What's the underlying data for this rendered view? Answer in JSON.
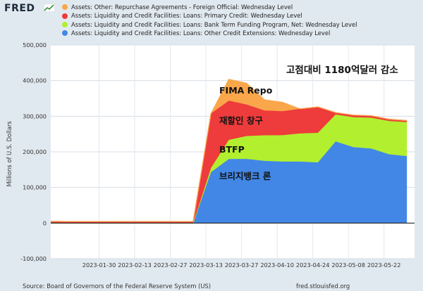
{
  "header": {
    "logo_text": "FRED",
    "logo_icon": "fred-chart-icon"
  },
  "chart_data": {
    "type": "area",
    "stacked": true,
    "xlabel": "",
    "ylabel": "Millions of U.S. Dollars",
    "ylim": [
      -100000,
      500000
    ],
    "yticks": [
      -100000,
      0,
      100000,
      200000,
      300000,
      400000,
      500000
    ],
    "ytick_labels": [
      "-100,000",
      "0",
      "100,000",
      "200,000",
      "300,000",
      "400,000",
      "500,000"
    ],
    "xlim": [
      "2023-01-11",
      "2023-06-03"
    ],
    "xticks": [
      "2023-01-30",
      "2023-02-13",
      "2023-02-27",
      "2023-03-13",
      "2023-03-27",
      "2023-04-10",
      "2023-04-24",
      "2023-05-08",
      "2023-05-22"
    ],
    "grid": true,
    "legend_position": "top",
    "x": [
      "2023-01-11",
      "2023-01-18",
      "2023-01-25",
      "2023-02-01",
      "2023-02-08",
      "2023-02-15",
      "2023-02-22",
      "2023-03-01",
      "2023-03-08",
      "2023-03-15",
      "2023-03-22",
      "2023-03-29",
      "2023-04-05",
      "2023-04-12",
      "2023-04-19",
      "2023-04-26",
      "2023-05-03",
      "2023-05-10",
      "2023-05-17",
      "2023-05-24",
      "2023-05-31"
    ],
    "series": [
      {
        "name": "Assets: Liquidity and Credit Facilities: Loans: Other Credit Extensions: Wednesday Level",
        "color": "#4287e6",
        "values": [
          0,
          0,
          0,
          0,
          0,
          0,
          0,
          0,
          0,
          142800,
          179800,
          180100,
          174600,
          172600,
          172500,
          170100,
          229000,
          213000,
          209000,
          193000,
          188000
        ]
      },
      {
        "name": "Assets: Liquidity and Credit Facilities: Loans: Bank Term Funding Program, Net: Wednesday Level",
        "color": "#b2ef2f",
        "values": [
          0,
          0,
          0,
          0,
          0,
          0,
          0,
          0,
          0,
          11900,
          53700,
          64400,
          71800,
          73900,
          79000,
          83100,
          75800,
          84300,
          86700,
          93600,
          95300
        ]
      },
      {
        "name": "Assets: Liquidity and Credit Facilities: Loans: Primary Credit: Wednesday Level",
        "color": "#ee3b3b",
        "values": [
          4600,
          4500,
          4500,
          4400,
          4300,
          4300,
          4200,
          4200,
          4600,
          152900,
          110200,
          88200,
          69700,
          67600,
          69000,
          73000,
          5300,
          5800,
          5500,
          4900,
          4600
        ]
      },
      {
        "name": "Assets: Other: Repurchase Agreements - Foreign Official: Wednesday Level",
        "color": "#f9a74a",
        "values": [
          0,
          0,
          0,
          0,
          0,
          0,
          0,
          0,
          0,
          0,
          60000,
          60000,
          30000,
          25000,
          0,
          0,
          0,
          0,
          0,
          0,
          0
        ]
      }
    ]
  },
  "annotations": {
    "total_decline": "고점대비 1180억달러 감소",
    "fima": "FIMA Repo",
    "discount_window": "재할인 창구",
    "btfp": "BTFP",
    "bridge_bank": "브리지뱅크 론"
  },
  "footer": {
    "source": "Source: Board of Governors of the Federal Reserve System (US)",
    "site": "fred.stlouisfed.org"
  }
}
